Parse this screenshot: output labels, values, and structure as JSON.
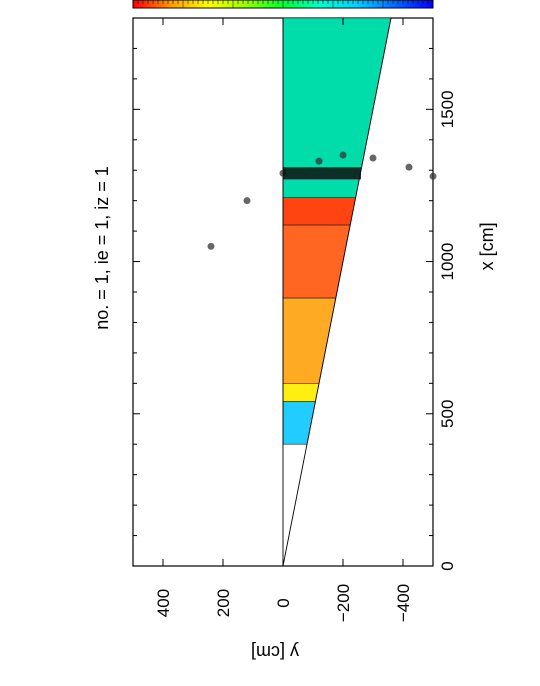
{
  "chart_data": {
    "type": "heatmap",
    "title": "no. =  1,  ie =  1,  iz =  1",
    "xlabel": "x [cm]",
    "ylabel": "y [cm]",
    "xlim": [
      0,
      1800
    ],
    "ylim": [
      -500,
      500
    ],
    "x_ticks": [
      "0",
      "500",
      "1000",
      "1500"
    ],
    "x_tick_values": [
      0,
      500,
      1000,
      1500
    ],
    "y_ticks": [
      "400",
      "200",
      "0",
      "−200",
      "−400"
    ],
    "y_tick_values": [
      400,
      200,
      0,
      -200,
      -400
    ],
    "orientation": "rotated-90-clockwise",
    "colorbar": {
      "position": "top",
      "colors": [
        "#ff0000",
        "#ff9900",
        "#ffff00",
        "#99ff00",
        "#00ff33",
        "#00ffcc",
        "#00ccff",
        "#0066ff",
        "#0000ff"
      ]
    },
    "wedge": {
      "apex": [
        0,
        0
      ],
      "upper_edge_y": 0,
      "lower_edge_slope": -0.2
    },
    "regions": [
      {
        "x": [
          1210,
          1800
        ],
        "color": "#00ddaa"
      },
      {
        "x": [
          1120,
          1210
        ],
        "color": "#ff4411"
      },
      {
        "x": [
          880,
          1120
        ],
        "color": "#ff6622"
      },
      {
        "x": [
          600,
          880
        ],
        "color": "#ffaa22"
      },
      {
        "x": [
          540,
          600
        ],
        "color": "#ffee11"
      },
      {
        "x": [
          400,
          540
        ],
        "color": "#22ccff"
      }
    ],
    "dotted_arc_x": [
      1280,
      1310,
      1340,
      1350,
      1330,
      1290,
      1200,
      1050
    ],
    "dotted_arc_y": [
      -500,
      -420,
      -300,
      -200,
      -120,
      0,
      120,
      240
    ]
  }
}
